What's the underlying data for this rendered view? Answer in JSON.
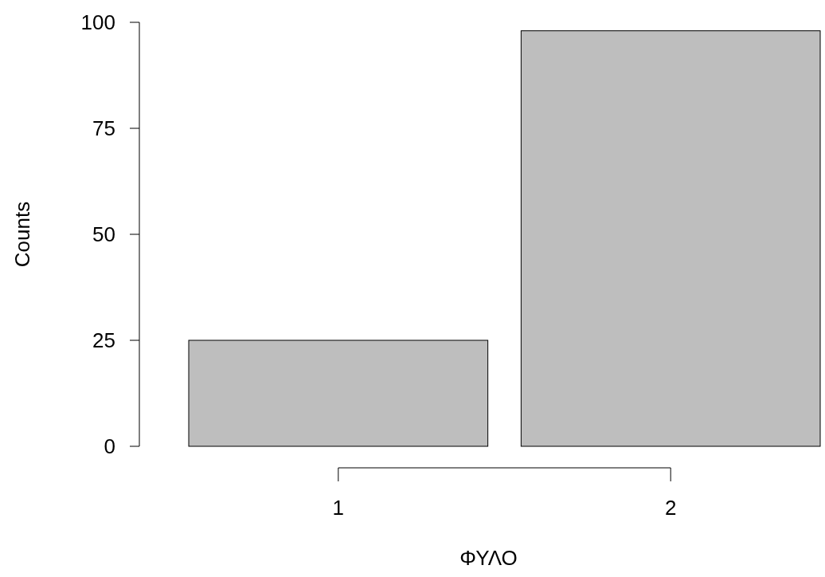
{
  "chart_data": {
    "type": "bar",
    "xlabel": "ΦΥΛΟ",
    "ylabel": "Counts",
    "categories": [
      "1",
      "2"
    ],
    "values": [
      25,
      98
    ],
    "color": "#bebebe",
    "ylim": [
      0,
      100
    ],
    "yticks": [
      0,
      25,
      50,
      75,
      100
    ],
    "grid": false
  }
}
